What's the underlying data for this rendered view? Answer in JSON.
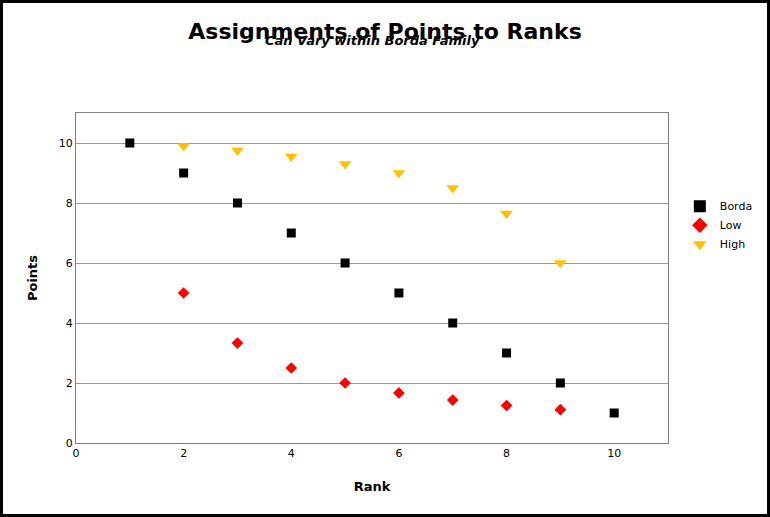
{
  "chart_data": {
    "type": "scatter",
    "title": "Assignments of Points to Ranks",
    "subtitle": "Can Vary within Borda Family",
    "x_label": "Rank",
    "y_label": "Points",
    "xlim": [
      0,
      11
    ],
    "xticks": [
      0,
      2,
      4,
      6,
      8,
      10
    ],
    "ylim": [
      0,
      11
    ],
    "yticks": [
      0,
      2,
      4,
      6,
      8,
      10
    ],
    "grid": true,
    "legend": "right",
    "series": [
      {
        "name": "Borda",
        "color": "#000000",
        "marker": "square",
        "x": [
          1,
          2,
          3,
          4,
          5,
          6,
          7,
          8,
          9,
          10
        ],
        "values": [
          10,
          9,
          8,
          7,
          6,
          5,
          4,
          3,
          2,
          1
        ]
      },
      {
        "name": "Low",
        "color": "#ff0000",
        "marker": "diamond",
        "x": [
          2,
          3,
          4,
          5,
          6,
          7,
          8,
          9
        ],
        "values": [
          5,
          3.33,
          2.5,
          2,
          1.67,
          1.43,
          1.25,
          1.11
        ]
      },
      {
        "name": "High",
        "color": "#ffc000",
        "marker": "triangle-down",
        "x": [
          2,
          3,
          4,
          5,
          6,
          7,
          8,
          9
        ],
        "values": [
          9.9,
          9.75,
          9.55,
          9.3,
          9.0,
          8.5,
          7.65,
          6.0
        ]
      }
    ]
  }
}
